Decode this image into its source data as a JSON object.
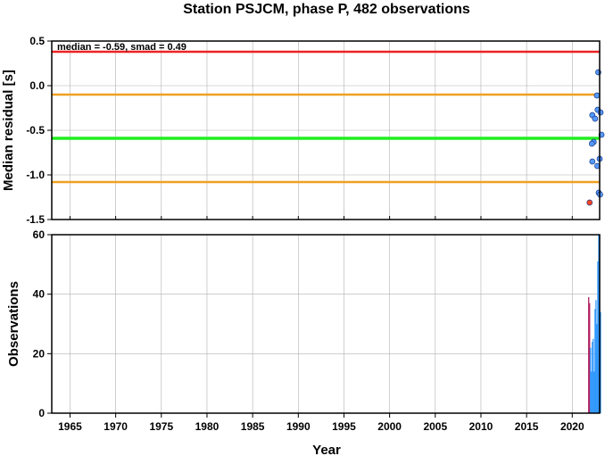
{
  "title": "Station PSJCM, phase P, 482 observations",
  "chart_data": [
    {
      "type": "scatter",
      "panel": "residuals",
      "ylabel": "Median residual [s]",
      "xlim": [
        1963,
        2023
      ],
      "ylim": [
        -1.5,
        0.5
      ],
      "grid": true,
      "yticks": [
        "0.5",
        "0.0",
        "-0.5",
        "-1.0",
        "-1.5"
      ],
      "ytick_values": [
        0.5,
        0.0,
        -0.5,
        -1.0,
        -1.5
      ],
      "annotation": "median = -0.59, smad = 0.49",
      "reference_lines": [
        {
          "kind": "upper-limit",
          "y": 0.38,
          "color": "#ee2222"
        },
        {
          "kind": "median+smad",
          "y": -0.1,
          "color": "#f0a020"
        },
        {
          "kind": "median",
          "y": -0.59,
          "color": "#22ee22"
        },
        {
          "kind": "median-smad",
          "y": -1.08,
          "color": "#f0a020"
        }
      ],
      "series": [
        {
          "kind": "accepted",
          "color": "#5599ff",
          "points": [
            {
              "x": 2022.85,
              "y": 0.15
            },
            {
              "x": 2022.7,
              "y": -0.11
            },
            {
              "x": 2022.78,
              "y": -0.27
            },
            {
              "x": 2023.1,
              "y": -0.3
            },
            {
              "x": 2022.2,
              "y": -0.33
            },
            {
              "x": 2022.5,
              "y": -0.37
            },
            {
              "x": 2023.2,
              "y": -0.55
            },
            {
              "x": 2022.35,
              "y": -0.63
            },
            {
              "x": 2022.15,
              "y": -0.65
            },
            {
              "x": 2022.2,
              "y": -0.85
            },
            {
              "x": 2023.0,
              "y": -0.82
            },
            {
              "x": 2022.75,
              "y": -0.9
            },
            {
              "x": 2022.9,
              "y": -1.2
            },
            {
              "x": 2023.05,
              "y": -1.22
            }
          ]
        },
        {
          "kind": "rejected",
          "color": "#ff4422",
          "points": [
            {
              "x": 2021.9,
              "y": -1.31
            }
          ]
        }
      ]
    },
    {
      "type": "bar",
      "panel": "observations",
      "ylabel": "Observations",
      "xlabel": "Year",
      "xlim": [
        1963,
        2023
      ],
      "ylim": [
        0,
        60
      ],
      "grid": true,
      "yticks": [
        "60",
        "40",
        "20",
        "0"
      ],
      "ytick_values": [
        60,
        40,
        20,
        0
      ],
      "xticks": [
        "1965",
        "1970",
        "1975",
        "1980",
        "1985",
        "1990",
        "1995",
        "2000",
        "2005",
        "2010",
        "2015",
        "2020"
      ],
      "xtick_values": [
        1965,
        1970,
        1975,
        1980,
        1985,
        1990,
        1995,
        2000,
        2005,
        2010,
        2015,
        2020
      ],
      "bar_color": "#3399ff",
      "bars": [
        {
          "x": 2021.8,
          "value": 39,
          "color": "#b02060"
        },
        {
          "x": 2021.9,
          "value": 37,
          "color": "#b02060"
        },
        {
          "x": 2022.0,
          "value": 22
        },
        {
          "x": 2022.1,
          "value": 14
        },
        {
          "x": 2022.2,
          "value": 24
        },
        {
          "x": 2022.3,
          "value": 25
        },
        {
          "x": 2022.4,
          "value": 14
        },
        {
          "x": 2022.5,
          "value": 35
        },
        {
          "x": 2022.6,
          "value": 38
        },
        {
          "x": 2022.7,
          "value": 30
        },
        {
          "x": 2022.8,
          "value": 51
        },
        {
          "x": 2022.9,
          "value": 60
        },
        {
          "x": 2023.0,
          "value": 60
        },
        {
          "x": 2023.1,
          "value": 34
        }
      ]
    }
  ]
}
